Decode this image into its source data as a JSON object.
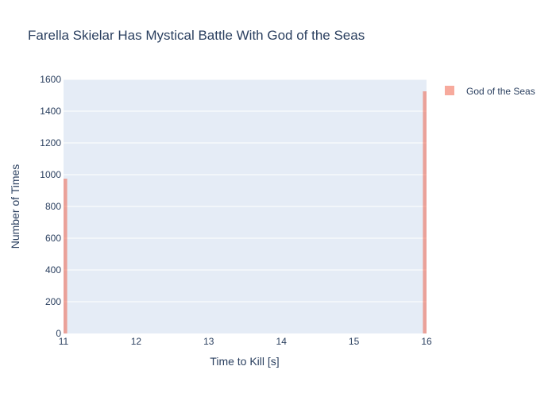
{
  "chart_data": {
    "type": "bar",
    "title": "Farella Skielar Has Mystical Battle With God of the Seas",
    "xlabel": "Time to Kill [s]",
    "ylabel": "Number of Times",
    "xlim": [
      11,
      16
    ],
    "ylim": [
      0,
      1600
    ],
    "x_ticks": [
      "11",
      "12",
      "13",
      "14",
      "15",
      "16"
    ],
    "y_ticks": [
      "0",
      "200",
      "400",
      "600",
      "800",
      "1000",
      "1200",
      "1400",
      "1600"
    ],
    "bin_width": 0.1,
    "grid": true,
    "legend_position": "top-right",
    "colors": {
      "plot_background": "#e5ecf6",
      "grid": "#ffffff",
      "bar": "#ef553b",
      "bar_opacity": 0.5,
      "text": "#2a3f5f"
    },
    "series": [
      {
        "name": "God of the Seas",
        "x": [
          11,
          16
        ],
        "values": [
          975,
          1525
        ]
      }
    ]
  }
}
